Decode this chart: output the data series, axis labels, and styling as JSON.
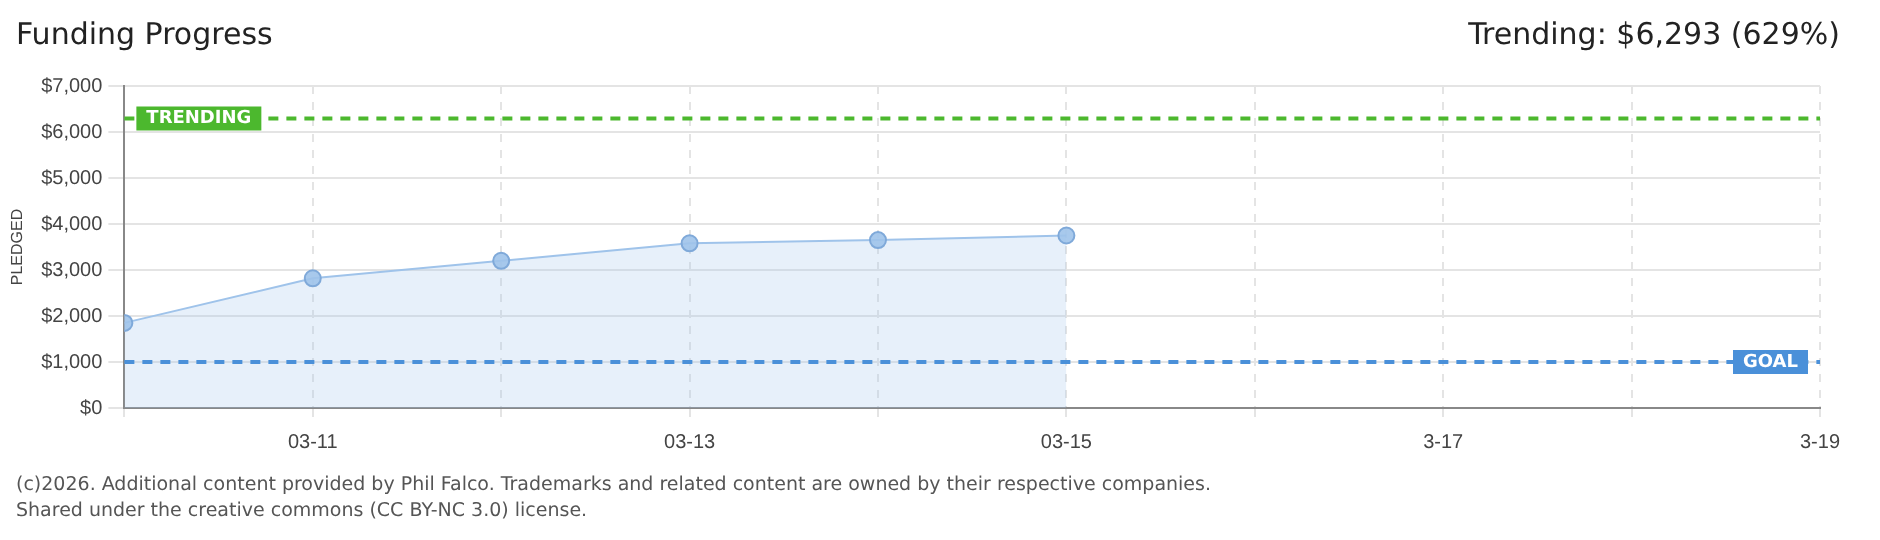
{
  "chart_data": {
    "type": "area",
    "title": "Funding Progress",
    "ylabel": "PLEDGED",
    "annotations": [
      "Trending: $6,293 (629%)",
      "(c)2026. Additional content provided by Phil Falco. Trademarks and related content are owned by their respective companies.",
      "Shared under the creative commons (CC BY-NC 3.0) license."
    ],
    "x": [
      "--03-10",
      "--03-11",
      "--03-12",
      "--03-13",
      "--03-14",
      "--03-15"
    ],
    "series": [
      {
        "color": "#9fc3ea",
        "values": [
          1850,
          2820,
          3200,
          3580,
          3650,
          3750
        ]
      }
    ],
    "xlim": [
      "--03-10",
      "--03-19"
    ],
    "xticks": [
      {
        "value": "--03-10",
        "label": null
      },
      {
        "value": "--03-11",
        "label": "03-11"
      },
      {
        "value": "--03-12",
        "label": null
      },
      {
        "value": "--03-13",
        "label": "03-13"
      },
      {
        "value": "--03-14",
        "label": null
      },
      {
        "value": "--03-15",
        "label": "03-15"
      },
      {
        "value": "--03-16",
        "label": null
      },
      {
        "value": "--03-17",
        "label": "3-17"
      },
      {
        "value": "--03-18",
        "label": null
      },
      {
        "value": "--03-19",
        "label": "3-19"
      }
    ],
    "ylim": [
      0,
      7000
    ],
    "yticks": [
      {
        "value": 0,
        "label": "$0"
      },
      {
        "value": 1000,
        "label": "$1,000"
      },
      {
        "value": 2000,
        "label": "$2,000"
      },
      {
        "value": 3000,
        "label": "$3,000"
      },
      {
        "value": 4000,
        "label": "$4,000"
      },
      {
        "value": 5000,
        "label": "$5,000"
      },
      {
        "value": 6000,
        "label": "$6,000"
      },
      {
        "value": 7000,
        "label": "$7,000"
      }
    ],
    "ref_lines": [
      {
        "axis": "y",
        "value": 6293,
        "label": "TRENDING",
        "color": "#4cb82e",
        "line_style": "dashed"
      },
      {
        "axis": "y",
        "value": 1000,
        "label": "GOAL",
        "color": "#4a90d9",
        "line_style": "dashed"
      }
    ],
    "grid": true,
    "marker": "circle",
    "line_style": "solid",
    "legend": false
  }
}
